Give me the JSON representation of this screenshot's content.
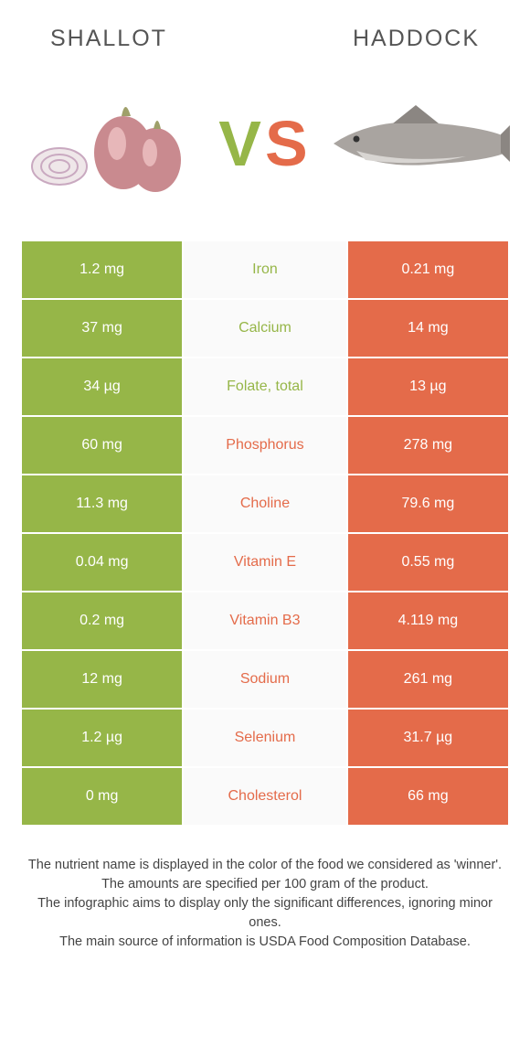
{
  "header": {
    "left_title": "Shallot",
    "right_title": "Haddock"
  },
  "vs": {
    "label_v": "V",
    "label_s": "S"
  },
  "colors": {
    "left_bg": "#96b648",
    "right_bg": "#e46b4a",
    "left_text": "#96b648",
    "right_text": "#e46b4a",
    "mid_bg": "#fafafa"
  },
  "nutrients": [
    {
      "name": "Iron",
      "left_value": "1.2 mg",
      "right_value": "0.21 mg",
      "winner": "left"
    },
    {
      "name": "Calcium",
      "left_value": "37 mg",
      "right_value": "14 mg",
      "winner": "left"
    },
    {
      "name": "Folate, total",
      "left_value": "34 µg",
      "right_value": "13 µg",
      "winner": "left"
    },
    {
      "name": "Phosphorus",
      "left_value": "60 mg",
      "right_value": "278 mg",
      "winner": "right"
    },
    {
      "name": "Choline",
      "left_value": "11.3 mg",
      "right_value": "79.6 mg",
      "winner": "right"
    },
    {
      "name": "Vitamin E",
      "left_value": "0.04 mg",
      "right_value": "0.55 mg",
      "winner": "right"
    },
    {
      "name": "Vitamin B3",
      "left_value": "0.2 mg",
      "right_value": "4.119 mg",
      "winner": "right"
    },
    {
      "name": "Sodium",
      "left_value": "12 mg",
      "right_value": "261 mg",
      "winner": "right"
    },
    {
      "name": "Selenium",
      "left_value": "1.2 µg",
      "right_value": "31.7 µg",
      "winner": "right"
    },
    {
      "name": "Cholesterol",
      "left_value": "0 mg",
      "right_value": "66 mg",
      "winner": "right"
    }
  ],
  "footer": {
    "line1": "The nutrient name is displayed in the color of the food we considered as 'winner'.",
    "line2": "The amounts are specified per 100 gram of the product.",
    "line3": "The infographic aims to display only the significant differences, ignoring minor ones.",
    "line4": "The main source of information is USDA Food Composition Database."
  }
}
